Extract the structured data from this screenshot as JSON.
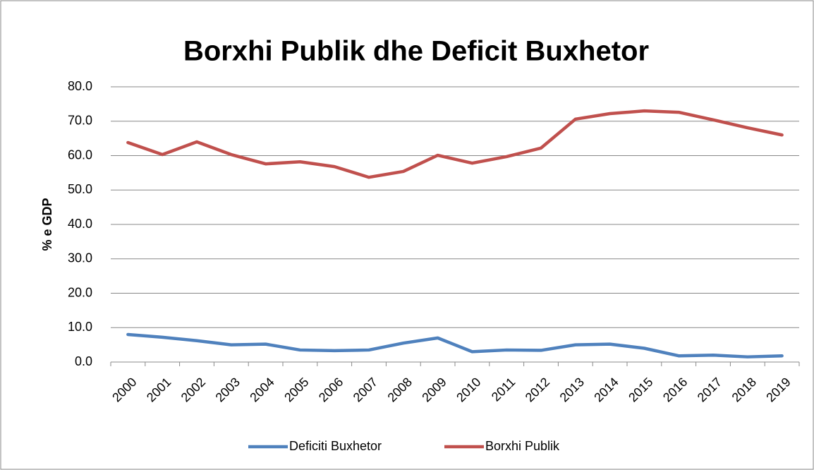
{
  "chart_data": {
    "type": "line",
    "title": "Borxhi Publik dhe Deficit Buxhetor",
    "y_label": "% e GDP",
    "categories": [
      "2000",
      "2001",
      "2002",
      "2003",
      "2004",
      "2005",
      "2006",
      "2007",
      "2008",
      "2009",
      "2010",
      "2011",
      "2012",
      "2013",
      "2014",
      "2015",
      "2016",
      "2017",
      "2018",
      "2019"
    ],
    "series": [
      {
        "name": "Deficiti Buxhetor",
        "color": "#4f81bd",
        "values": [
          8.0,
          7.2,
          6.2,
          5.0,
          5.2,
          3.5,
          3.3,
          3.5,
          5.5,
          7.0,
          3.0,
          3.5,
          3.4,
          5.0,
          5.2,
          4.0,
          1.8,
          2.0,
          1.5,
          1.8
        ]
      },
      {
        "name": "Borxhi Publik",
        "color": "#c0504d",
        "values": [
          63.8,
          60.3,
          64.0,
          60.3,
          57.6,
          58.2,
          56.8,
          53.7,
          55.4,
          60.1,
          57.8,
          59.7,
          62.2,
          70.6,
          72.2,
          73.0,
          72.6,
          70.4,
          68.1,
          66.0
        ]
      }
    ],
    "ylim": [
      0,
      80
    ],
    "yticks": [
      {
        "value": 0,
        "label": "0.0"
      },
      {
        "value": 10,
        "label": "10.0"
      },
      {
        "value": 20,
        "label": "20.0"
      },
      {
        "value": 30,
        "label": "30.0"
      },
      {
        "value": 40,
        "label": "40.0"
      },
      {
        "value": 50,
        "label": "50.0"
      },
      {
        "value": 60,
        "label": "60.0"
      },
      {
        "value": 70,
        "label": "70.0"
      },
      {
        "value": 80,
        "label": "80.0"
      }
    ],
    "grid": true,
    "legend": "bottom"
  }
}
